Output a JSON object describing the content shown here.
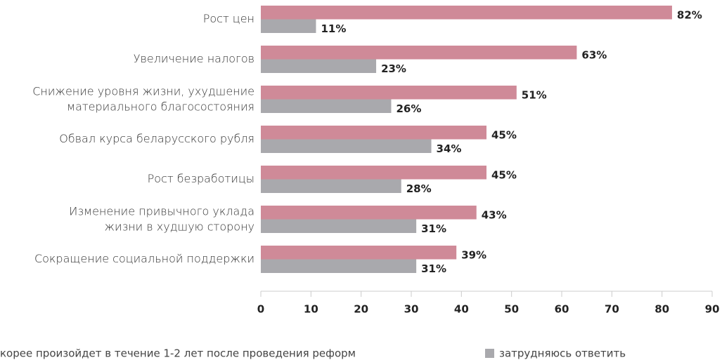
{
  "chart_data": {
    "type": "bar",
    "orientation": "horizontal",
    "categories": [
      "Рост цен",
      "Увеличение налогов",
      "Снижение уровня жизни, ухудшение\nматериального благосостояния",
      "Обвал курса беларусского рубля",
      "Рост безработицы",
      "Изменение привычного уклада\nжизни в худшую сторону",
      "Сокращение социальной поддержки"
    ],
    "series": [
      {
        "name": "корее произойдет в течение 1-2 лет после проведения реформ",
        "color": "#cf8a98",
        "values": [
          82,
          63,
          51,
          45,
          45,
          43,
          39
        ],
        "value_labels": [
          "82%",
          "63%",
          "51%",
          "45%",
          "45%",
          "43%",
          "39%"
        ]
      },
      {
        "name": "затрудняюсь ответить",
        "color": "#a9a9ad",
        "values": [
          11,
          23,
          26,
          34,
          28,
          31,
          31
        ],
        "value_labels": [
          "11%",
          "23%",
          "26%",
          "34%",
          "28%",
          "31%",
          "31%"
        ]
      }
    ],
    "xlim": [
      0,
      90
    ],
    "xticks": [
      0,
      10,
      20,
      30,
      40,
      50,
      60,
      70,
      80,
      90
    ]
  }
}
